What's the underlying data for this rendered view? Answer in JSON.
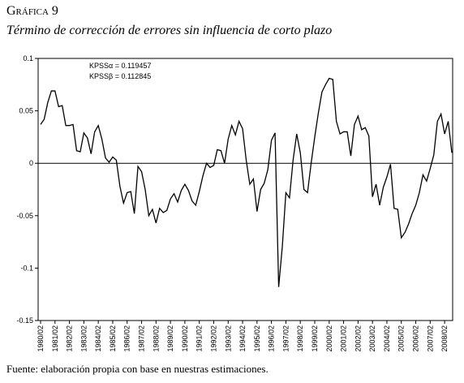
{
  "chart_data": {
    "type": "line",
    "title": "Gráfica 9",
    "subtitle": "Término de corrección de errores sin influencia de corto plazo",
    "annotations": [
      "KPSSα = 0.119457",
      "KPSSβ = 0.112845"
    ],
    "source": "Fuente: elaboración propia con base en nuestras estimaciones.",
    "categories": [
      "1980/02",
      null,
      null,
      null,
      "1981/02",
      null,
      null,
      null,
      "1982/02",
      null,
      null,
      null,
      "1983/02",
      null,
      null,
      null,
      "1984/02",
      null,
      null,
      null,
      "1985/02",
      null,
      null,
      null,
      "1986/02",
      null,
      null,
      null,
      "1987/02",
      null,
      null,
      null,
      "1988/02",
      null,
      null,
      null,
      "1989/02",
      null,
      null,
      null,
      "1990/02",
      null,
      null,
      null,
      "1991/02",
      null,
      null,
      null,
      "1992/02",
      null,
      null,
      null,
      "1993/02",
      null,
      null,
      null,
      "1994/02",
      null,
      null,
      null,
      "1995/02",
      null,
      null,
      null,
      "1996/02",
      null,
      null,
      null,
      "1997/02",
      null,
      null,
      null,
      "1998/02",
      null,
      null,
      null,
      "1999/02",
      null,
      null,
      null,
      "2000/02",
      null,
      null,
      null,
      "2001/02",
      null,
      null,
      null,
      "2002/02",
      null,
      null,
      null,
      "2003/02",
      null,
      null,
      null,
      "2004/02",
      null,
      null,
      null,
      "2005/02",
      null,
      null,
      null,
      "2006/02",
      null,
      null,
      null,
      "2007/02",
      null,
      null,
      null,
      "2008/02",
      null,
      null
    ],
    "series": [
      {
        "name": null,
        "color": "#000000",
        "values": [
          0.037,
          0.042,
          0.058,
          0.069,
          0.069,
          0.054,
          0.055,
          0.036,
          0.036,
          0.037,
          0.012,
          0.011,
          0.029,
          0.024,
          0.009,
          0.03,
          0.036,
          0.023,
          0.005,
          0.001,
          0.006,
          0.003,
          -0.022,
          -0.038,
          -0.028,
          -0.027,
          -0.048,
          -0.003,
          -0.008,
          -0.025,
          -0.05,
          -0.044,
          -0.057,
          -0.043,
          -0.047,
          -0.045,
          -0.034,
          -0.029,
          -0.037,
          -0.026,
          -0.02,
          -0.026,
          -0.036,
          -0.04,
          -0.027,
          -0.012,
          0.0,
          -0.004,
          -0.002,
          0.013,
          0.012,
          0.0,
          0.023,
          0.036,
          0.027,
          0.04,
          0.033,
          0.003,
          -0.02,
          -0.015,
          -0.046,
          -0.025,
          -0.019,
          -0.006,
          0.022,
          0.029,
          -0.118,
          -0.08,
          -0.028,
          -0.033,
          0.003,
          0.028,
          0.01,
          -0.025,
          -0.028,
          0.0,
          0.025,
          0.048,
          0.068,
          0.075,
          0.081,
          0.08,
          0.04,
          0.028,
          0.03,
          0.03,
          0.007,
          0.037,
          0.045,
          0.032,
          0.034,
          0.026,
          -0.032,
          -0.02,
          -0.04,
          -0.023,
          -0.013,
          -0.001,
          -0.043,
          -0.044,
          -0.071,
          -0.066,
          -0.058,
          -0.048,
          -0.04,
          -0.028,
          -0.011,
          -0.017,
          -0.005,
          0.008,
          0.04,
          0.047,
          0.028,
          0.04,
          0.01
        ]
      }
    ],
    "ylim": [
      -0.15,
      0.1
    ],
    "yticks": [
      0.1,
      0.05,
      0,
      -0.05,
      -0.1,
      -0.15
    ],
    "grid": false
  }
}
